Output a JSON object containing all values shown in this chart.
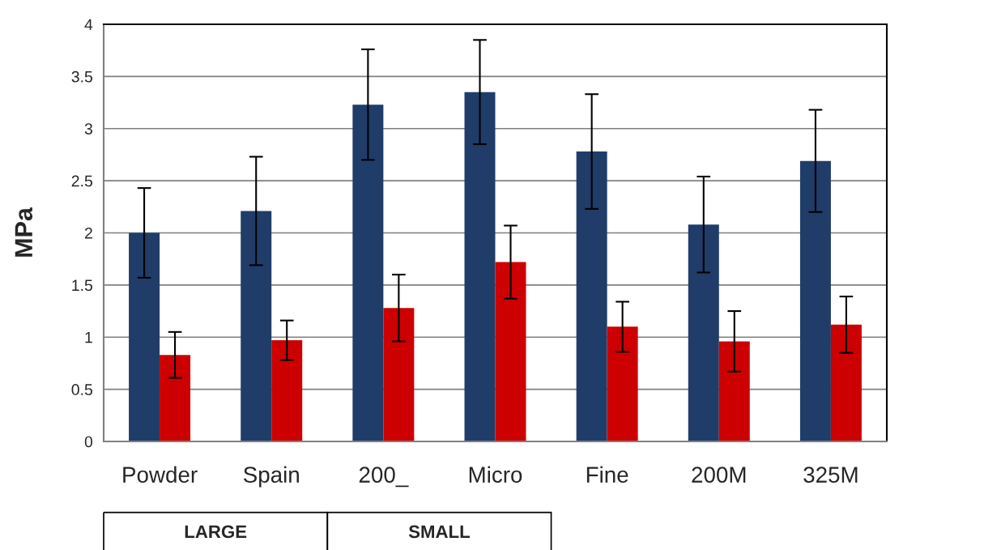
{
  "chart_data": {
    "type": "bar",
    "ylabel": "MPa",
    "categories": [
      "Powder",
      "Spain",
      "200_",
      "Micro",
      "Fine",
      "200M",
      "325M"
    ],
    "series": [
      {
        "color": "#1f3d68",
        "values": [
          2.0,
          2.21,
          3.23,
          3.35,
          2.78,
          2.08,
          2.69
        ],
        "errors": [
          0.43,
          0.52,
          0.53,
          0.5,
          0.55,
          0.46,
          0.49
        ]
      },
      {
        "color": "#cc0000",
        "values": [
          0.83,
          0.97,
          1.28,
          1.72,
          1.1,
          0.96,
          1.12
        ],
        "errors": [
          0.22,
          0.19,
          0.32,
          0.35,
          0.24,
          0.29,
          0.27
        ]
      }
    ],
    "ylim": [
      0,
      4
    ],
    "yticks": [
      0,
      0.5,
      1,
      1.5,
      2,
      2.5,
      3,
      3.5,
      4
    ],
    "grid": "y",
    "legend": false,
    "annotations": [
      "LARGE",
      "SMALL"
    ]
  }
}
